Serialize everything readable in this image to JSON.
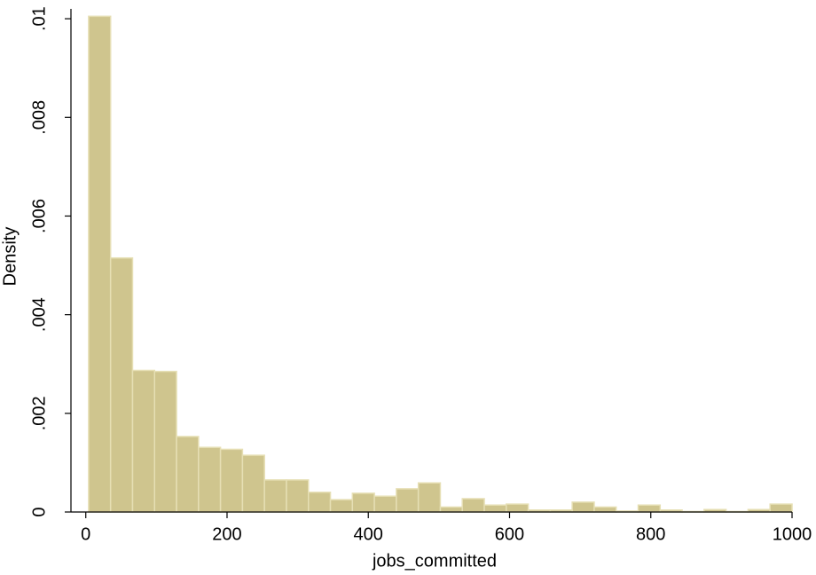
{
  "chart_data": {
    "type": "histogram",
    "x_label": "jobs_committed",
    "y_label": "Density",
    "bins": [
      4,
      35.125,
      66.25,
      97.375,
      128.5,
      159.625,
      190.75,
      221.875,
      253,
      284.125,
      315.25,
      346.375,
      377.5,
      408.625,
      439.75,
      470.875,
      502,
      533.125,
      564.25,
      595.375,
      626.5,
      657.625,
      688.75,
      719.875,
      751,
      782.125,
      813.25,
      844.375,
      875.5,
      906.625,
      937.75,
      968.875,
      1000
    ],
    "values": [
      0.01005,
      0.00515,
      0.00287,
      0.00285,
      0.00153,
      0.00131,
      0.00127,
      0.00115,
      0.00065,
      0.00065,
      0.0004,
      0.00025,
      0.00038,
      0.00032,
      0.00047,
      0.00059,
      0.0001,
      0.00027,
      0.00014,
      0.00016,
      4e-05,
      4e-05,
      0.0002,
      0.0001,
      2e-05,
      0.00014,
      4e-05,
      1e-05,
      5e-05,
      1e-05,
      5e-05,
      0.00016
    ],
    "color": "#cfc58e",
    "edge_color": "#e6dfb4",
    "xlim": [
      -21,
      1000
    ],
    "xticks": [
      0,
      200,
      400,
      600,
      800,
      1000
    ],
    "ylim": [
      0,
      0.0102
    ],
    "yticks": [
      0,
      {
        "value": 0.002,
        "label": ".002"
      },
      {
        "value": 0.004,
        "label": ".004"
      },
      {
        "value": 0.006,
        "label": ".006"
      },
      {
        "value": 0.008,
        "label": ".008"
      },
      {
        "value": 0.01,
        "label": ".01"
      }
    ]
  }
}
